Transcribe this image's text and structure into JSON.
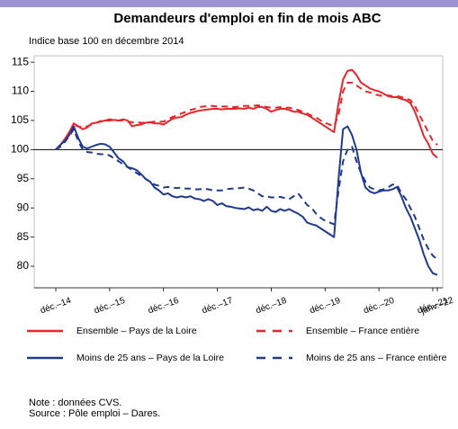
{
  "chart_data": {
    "type": "line",
    "title": "Demandeurs d'emploi en fin de mois ABC",
    "subtitle": "Indice base 100 en décembre 2014",
    "categories": [
      "déc.–14",
      null,
      null,
      null,
      null,
      null,
      null,
      null,
      null,
      null,
      null,
      null,
      "déc.–15",
      null,
      null,
      null,
      null,
      null,
      null,
      null,
      null,
      null,
      null,
      null,
      "déc.–16",
      null,
      null,
      null,
      null,
      null,
      null,
      null,
      null,
      null,
      null,
      null,
      "déc.–17",
      null,
      null,
      null,
      null,
      null,
      null,
      null,
      null,
      null,
      null,
      null,
      "déc.–18",
      null,
      null,
      null,
      null,
      null,
      null,
      null,
      null,
      null,
      null,
      null,
      "déc.–19",
      null,
      null,
      null,
      null,
      null,
      null,
      null,
      null,
      null,
      null,
      null,
      "déc.–20",
      null,
      null,
      null,
      null,
      null,
      null,
      null,
      null,
      null,
      null,
      null,
      "déc.–21",
      "janv.–22"
    ],
    "ylim": [
      76.3,
      116.1
    ],
    "yticks": [
      80,
      85,
      90,
      95,
      100,
      105,
      110,
      115
    ],
    "hline": 100,
    "series": [
      {
        "name": "Ensemble – Pays de la Loire",
        "color": "#e8262a",
        "dashed": false,
        "values": [
          100,
          100.8,
          101.8,
          103,
          104.5,
          104,
          103.5,
          103.8,
          104.5,
          104.6,
          104.8,
          105,
          105,
          105.1,
          105,
          105.2,
          105,
          104,
          104.2,
          104.3,
          104.6,
          104.7,
          104.5,
          104.5,
          104.3,
          104.8,
          105.3,
          105.5,
          105.6,
          106,
          106.3,
          106.5,
          106.7,
          106.8,
          106.9,
          107,
          107,
          106.9,
          107,
          107,
          107,
          107.1,
          107,
          107.2,
          107,
          107.3,
          107.3,
          107,
          106.5,
          106.8,
          107,
          107,
          106.8,
          106.5,
          106.5,
          106.2,
          106,
          105.5,
          105,
          104.5,
          104,
          103.5,
          103,
          108,
          112,
          113.5,
          113.7,
          112.8,
          111.5,
          111,
          110.5,
          110.2,
          110,
          109.6,
          109.2,
          109,
          109,
          108.7,
          108.5,
          108,
          106.5,
          104.5,
          102.3,
          101,
          99.3,
          98.6
        ]
      },
      {
        "name": "Ensemble – France entière",
        "color": "#e8262a",
        "dashed": true,
        "values": [
          100,
          100.6,
          101.5,
          102.8,
          104.2,
          104,
          103.8,
          104,
          104.3,
          104.6,
          104.9,
          105,
          105.2,
          105.1,
          105,
          105,
          104.8,
          104.7,
          104.7,
          104.6,
          104.6,
          104.7,
          104.8,
          104.8,
          104.8,
          105.2,
          105.6,
          105.9,
          106.2,
          106.5,
          106.8,
          107,
          107.3,
          107.4,
          107.5,
          107.5,
          107.4,
          107.4,
          107.4,
          107.3,
          107.3,
          107.4,
          107.5,
          107.5,
          107.5,
          107.6,
          107.5,
          107.3,
          107.2,
          107.2,
          107.3,
          107.2,
          107.2,
          107,
          106.8,
          106.5,
          106.2,
          105.8,
          105.5,
          105,
          104.6,
          104.3,
          104,
          106,
          110,
          111.5,
          111.5,
          111,
          110.5,
          110,
          109.8,
          109.5,
          109.3,
          109.2,
          109.3,
          109.2,
          109.2,
          109,
          108.8,
          108.5,
          107.5,
          106,
          104.5,
          103,
          101.5,
          100.8
        ]
      },
      {
        "name": "Moins de 25 ans – Pays de la Loire",
        "color": "#1f3a8f",
        "dashed": false,
        "values": [
          100,
          100.8,
          101.5,
          102.5,
          104,
          102,
          100.5,
          100.2,
          100.5,
          100.8,
          101,
          100.9,
          100.5,
          99.5,
          98.5,
          98,
          97,
          96.8,
          96.5,
          95.8,
          95,
          94.5,
          93.5,
          93,
          92.3,
          92.5,
          92,
          91.8,
          92,
          91.8,
          92,
          91.6,
          91.5,
          91.2,
          91.5,
          91.2,
          90.5,
          90.8,
          90.3,
          90.2,
          90,
          89.9,
          89.8,
          90.1,
          89.6,
          89.8,
          89.5,
          90.2,
          89.5,
          89.3,
          89.8,
          89.5,
          89.8,
          89.4,
          89,
          88.5,
          87.5,
          87.2,
          87,
          86.5,
          86,
          85.5,
          85,
          95,
          103.5,
          104,
          102.5,
          100,
          96,
          93.5,
          92.8,
          92.5,
          92.8,
          93,
          93,
          93.2,
          93.6,
          92,
          90,
          88.5,
          86.5,
          84.5,
          82,
          80,
          78.8,
          78.5
        ]
      },
      {
        "name": "Moins de 25 ans – France entière",
        "color": "#1f3a8f",
        "dashed": true,
        "values": [
          100,
          100.5,
          101.3,
          102.3,
          103.5,
          101.5,
          100,
          99.6,
          99.5,
          99.3,
          99.2,
          99.2,
          99,
          98.5,
          98,
          97.5,
          97,
          96.5,
          96,
          95.5,
          95,
          94.5,
          94,
          93.8,
          93.5,
          93.6,
          93.5,
          93.4,
          93.5,
          93.3,
          93.3,
          93.2,
          93.2,
          93.3,
          93.2,
          93,
          93,
          93,
          93.2,
          93.3,
          93.3,
          93.4,
          93.5,
          93.3,
          93,
          92.5,
          92,
          92,
          91.8,
          91.8,
          91.9,
          91.7,
          91.5,
          92,
          92.5,
          91.5,
          90.5,
          90,
          89,
          88.3,
          87.8,
          87.5,
          87.2,
          93,
          98,
          100,
          100.5,
          98,
          96,
          94.5,
          93.5,
          93.2,
          93,
          93.2,
          93.5,
          94,
          94,
          92.5,
          91.5,
          90,
          88.5,
          86.5,
          84.5,
          83,
          81.8,
          81.2
        ]
      }
    ],
    "notes": [
      "Note : données CVS.",
      "Source : Pôle emploi – Dares."
    ]
  }
}
